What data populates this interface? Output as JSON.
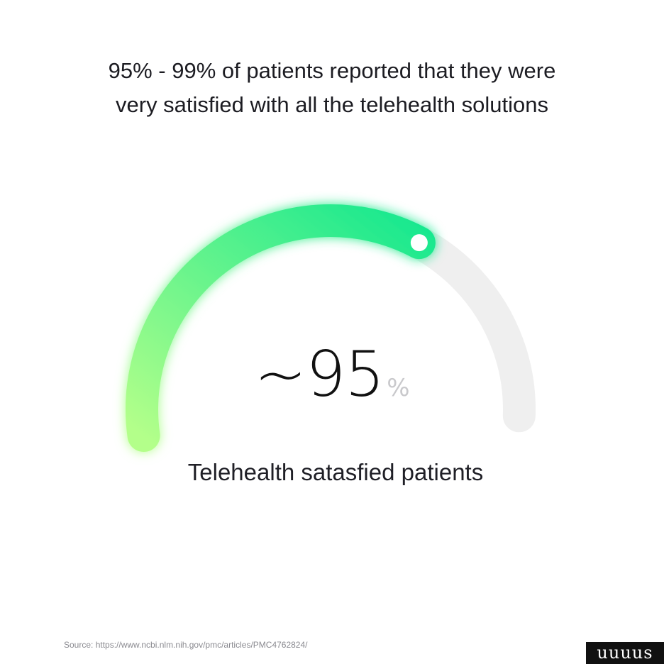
{
  "headline": {
    "line1": "95% - 99%  of patients reported that they were",
    "line2": "very satisfied with all the telehealth solutions"
  },
  "chart_data": {
    "type": "gauge",
    "value": 95,
    "max": 100,
    "display_value": "~95",
    "unit": "%",
    "label": "Telehealth satasfied patients",
    "colors": {
      "track": "#efefef",
      "gradient_start": "#b3ff8a",
      "gradient_end": "#17e88f",
      "knob": "#ffffff"
    }
  },
  "source": "Source: https://www.ncbi.nlm.nih.gov/pmc/articles/PMC4762824/",
  "logo": {
    "text": "uuuus"
  }
}
